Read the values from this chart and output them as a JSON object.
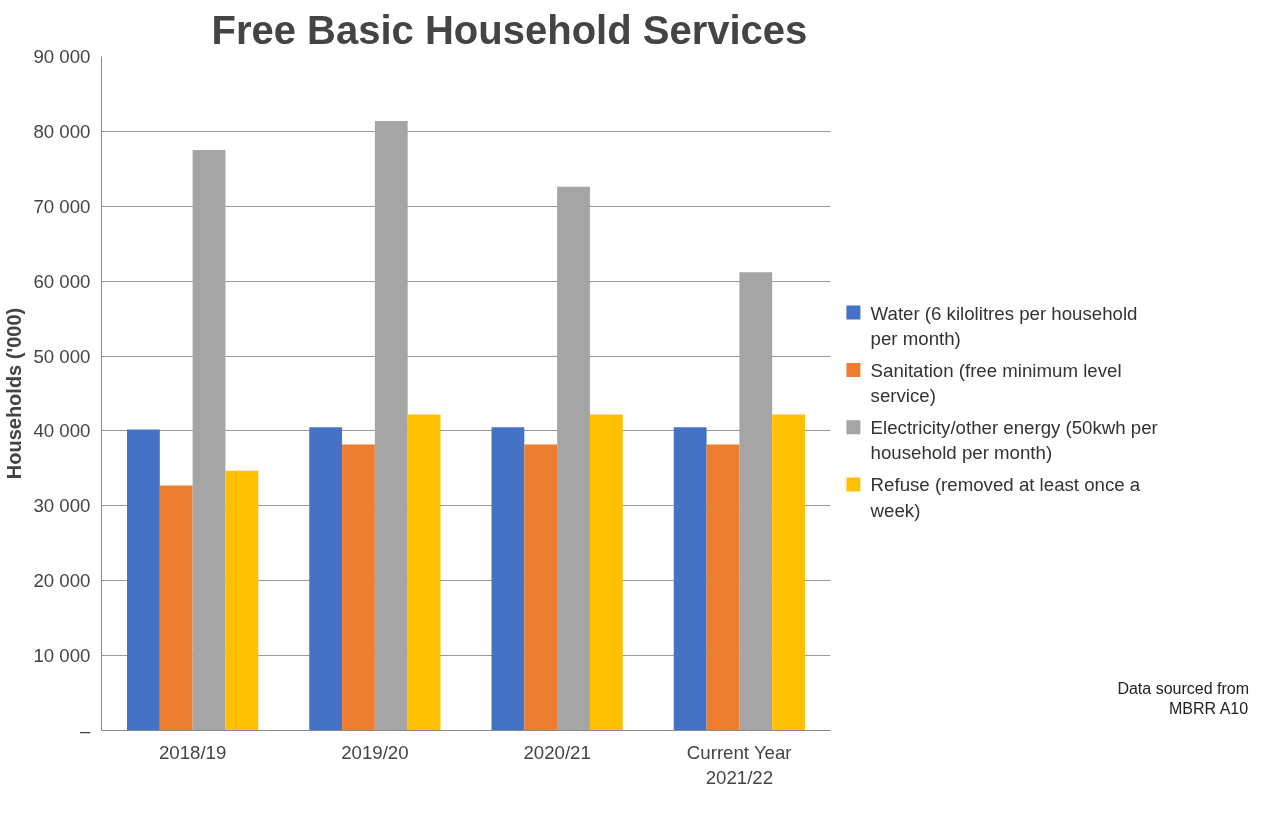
{
  "chart_data": {
    "type": "bar",
    "title": "Free Basic Household Services",
    "ylabel": "Households ('000)",
    "categories": [
      "2018/19",
      "2019/20",
      "2020/21",
      "Current Year 2021/22"
    ],
    "series": [
      {
        "name": "Water (6 kilolitres per household per month)",
        "color": "#4472c4",
        "values": [
          40200,
          40500,
          40500,
          40500
        ]
      },
      {
        "name": "Sanitation (free minimum level service)",
        "color": "#ed7d31",
        "values": [
          32700,
          38200,
          38200,
          38200
        ]
      },
      {
        "name": "Electricity/other energy (50kwh per household per month)",
        "color": "#a5a5a5",
        "values": [
          77500,
          81400,
          72600,
          61200
        ]
      },
      {
        "name": "Refuse (removed at least once a week)",
        "color": "#ffc000",
        "values": [
          34700,
          42200,
          42200,
          42200
        ]
      }
    ],
    "ylim": [
      0,
      90000
    ],
    "yticks": [
      {
        "value": 0,
        "label": "–"
      },
      {
        "value": 10000,
        "label": "10 000"
      },
      {
        "value": 20000,
        "label": "20 000"
      },
      {
        "value": 30000,
        "label": "30 000"
      },
      {
        "value": 40000,
        "label": "40 000"
      },
      {
        "value": 50000,
        "label": "50 000"
      },
      {
        "value": 60000,
        "label": "60 000"
      },
      {
        "value": 70000,
        "label": "70 000"
      },
      {
        "value": 80000,
        "label": "80 000"
      },
      {
        "value": 90000,
        "label": "90 000"
      }
    ],
    "grid": "y",
    "legend": "right",
    "annotations": [
      "Data sourced from MBRR A10"
    ]
  }
}
